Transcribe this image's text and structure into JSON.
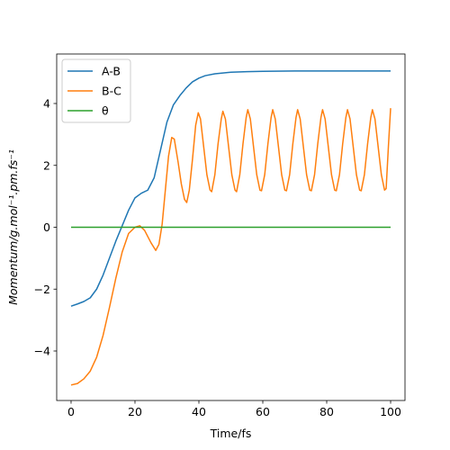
{
  "chart_data": {
    "type": "line",
    "xlabel": "Time/fs",
    "ylabel": "Momentum/g.mol⁻¹.pm.fs⁻¹",
    "xlim": [
      -4.5,
      104.5
    ],
    "ylim": [
      -5.6,
      5.6
    ],
    "xticks": [
      0,
      20,
      40,
      60,
      80,
      100
    ],
    "yticks": [
      -4,
      -2,
      0,
      2,
      4
    ],
    "xtick_labels": [
      "0",
      "20",
      "40",
      "60",
      "80",
      "100"
    ],
    "ytick_labels": [
      "−4",
      "−2",
      "0",
      "2",
      "4"
    ],
    "grid": false,
    "legend_position": "top-left",
    "series": [
      {
        "name": "A-B",
        "color": "#1f77b4",
        "points": [
          [
            0,
            -2.55
          ],
          [
            2,
            -2.48
          ],
          [
            4,
            -2.4
          ],
          [
            6,
            -2.28
          ],
          [
            8,
            -2.0
          ],
          [
            10,
            -1.55
          ],
          [
            12,
            -1.0
          ],
          [
            14,
            -0.45
          ],
          [
            16,
            0.05
          ],
          [
            18,
            0.55
          ],
          [
            20,
            0.95
          ],
          [
            22,
            1.1
          ],
          [
            24,
            1.2
          ],
          [
            26,
            1.6
          ],
          [
            28,
            2.5
          ],
          [
            30,
            3.4
          ],
          [
            32,
            3.95
          ],
          [
            34,
            4.25
          ],
          [
            36,
            4.5
          ],
          [
            38,
            4.7
          ],
          [
            40,
            4.82
          ],
          [
            42,
            4.9
          ],
          [
            45,
            4.96
          ],
          [
            50,
            5.01
          ],
          [
            55,
            5.03
          ],
          [
            60,
            5.04
          ],
          [
            70,
            5.05
          ],
          [
            80,
            5.05
          ],
          [
            90,
            5.05
          ],
          [
            100,
            5.05
          ]
        ]
      },
      {
        "name": "B-C",
        "color": "#ff7f0e",
        "points": [
          [
            0,
            -5.1
          ],
          [
            2,
            -5.05
          ],
          [
            4,
            -4.9
          ],
          [
            6,
            -4.65
          ],
          [
            8,
            -4.2
          ],
          [
            10,
            -3.5
          ],
          [
            12,
            -2.6
          ],
          [
            14,
            -1.65
          ],
          [
            16,
            -0.8
          ],
          [
            18,
            -0.2
          ],
          [
            20,
            0.0
          ],
          [
            21.5,
            0.05
          ],
          [
            23,
            -0.1
          ],
          [
            25,
            -0.5
          ],
          [
            26.5,
            -0.75
          ],
          [
            27.5,
            -0.55
          ],
          [
            28.5,
            0.1
          ],
          [
            29.5,
            1.2
          ],
          [
            30.5,
            2.3
          ],
          [
            31.5,
            2.9
          ],
          [
            32.3,
            2.85
          ],
          [
            33.5,
            2.1
          ],
          [
            34.5,
            1.4
          ],
          [
            35.5,
            0.9
          ],
          [
            36.2,
            0.8
          ],
          [
            37,
            1.2
          ],
          [
            38,
            2.2
          ],
          [
            39,
            3.3
          ],
          [
            39.8,
            3.7
          ],
          [
            40.5,
            3.5
          ],
          [
            41.5,
            2.6
          ],
          [
            42.5,
            1.7
          ],
          [
            43.5,
            1.2
          ],
          [
            44,
            1.15
          ],
          [
            45,
            1.7
          ],
          [
            46,
            2.7
          ],
          [
            47,
            3.5
          ],
          [
            47.5,
            3.75
          ],
          [
            48.3,
            3.5
          ],
          [
            49.3,
            2.6
          ],
          [
            50.3,
            1.7
          ],
          [
            51.3,
            1.2
          ],
          [
            51.8,
            1.15
          ],
          [
            52.8,
            1.7
          ],
          [
            53.8,
            2.7
          ],
          [
            54.8,
            3.55
          ],
          [
            55.3,
            3.8
          ],
          [
            56.1,
            3.5
          ],
          [
            57.1,
            2.6
          ],
          [
            58.1,
            1.7
          ],
          [
            59.1,
            1.2
          ],
          [
            59.6,
            1.18
          ],
          [
            60.6,
            1.7
          ],
          [
            61.6,
            2.7
          ],
          [
            62.6,
            3.55
          ],
          [
            63.1,
            3.8
          ],
          [
            63.9,
            3.5
          ],
          [
            64.9,
            2.6
          ],
          [
            65.9,
            1.7
          ],
          [
            66.9,
            1.2
          ],
          [
            67.4,
            1.18
          ],
          [
            68.4,
            1.7
          ],
          [
            69.4,
            2.7
          ],
          [
            70.4,
            3.55
          ],
          [
            70.9,
            3.8
          ],
          [
            71.7,
            3.5
          ],
          [
            72.7,
            2.6
          ],
          [
            73.7,
            1.7
          ],
          [
            74.7,
            1.2
          ],
          [
            75.2,
            1.18
          ],
          [
            76.2,
            1.7
          ],
          [
            77.2,
            2.7
          ],
          [
            78.2,
            3.55
          ],
          [
            78.7,
            3.8
          ],
          [
            79.5,
            3.5
          ],
          [
            80.5,
            2.6
          ],
          [
            81.5,
            1.7
          ],
          [
            82.5,
            1.2
          ],
          [
            83,
            1.18
          ],
          [
            84,
            1.7
          ],
          [
            85,
            2.7
          ],
          [
            86,
            3.55
          ],
          [
            86.5,
            3.8
          ],
          [
            87.3,
            3.5
          ],
          [
            88.3,
            2.6
          ],
          [
            89.3,
            1.7
          ],
          [
            90.3,
            1.2
          ],
          [
            90.8,
            1.18
          ],
          [
            91.8,
            1.7
          ],
          [
            92.8,
            2.7
          ],
          [
            93.8,
            3.55
          ],
          [
            94.3,
            3.8
          ],
          [
            95.1,
            3.5
          ],
          [
            96.1,
            2.6
          ],
          [
            97.1,
            1.7
          ],
          [
            98.1,
            1.2
          ],
          [
            98.6,
            1.25
          ],
          [
            99.3,
            2.6
          ],
          [
            100,
            3.85
          ]
        ]
      },
      {
        "name": "θ",
        "color": "#2ca02c",
        "points": [
          [
            0,
            0
          ],
          [
            100,
            0
          ]
        ]
      }
    ]
  }
}
